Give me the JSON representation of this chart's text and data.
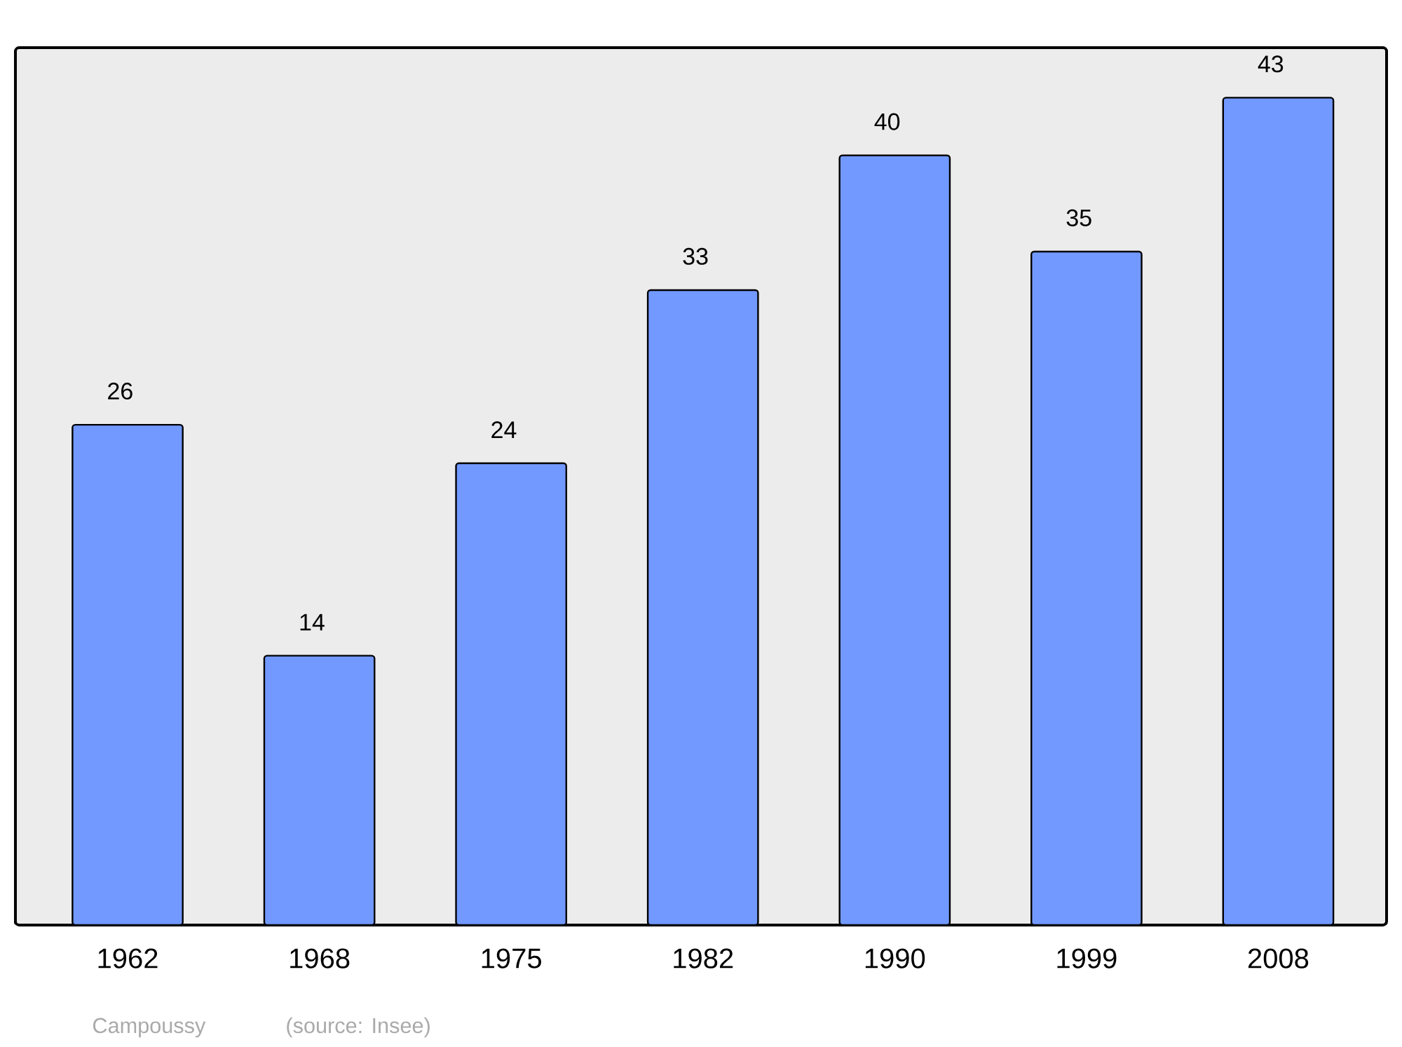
{
  "chart_data": {
    "type": "bar",
    "categories": [
      "1962",
      "1968",
      "1975",
      "1982",
      "1990",
      "1999",
      "2008"
    ],
    "values": [
      26,
      14,
      24,
      33,
      40,
      35,
      43
    ],
    "color": "#7299ff",
    "ylim": [
      0,
      45.6
    ],
    "data_labels": true,
    "grid": false,
    "tick_labels": "x",
    "annotations": [
      "Campoussy",
      "(source: Insee)"
    ]
  }
}
